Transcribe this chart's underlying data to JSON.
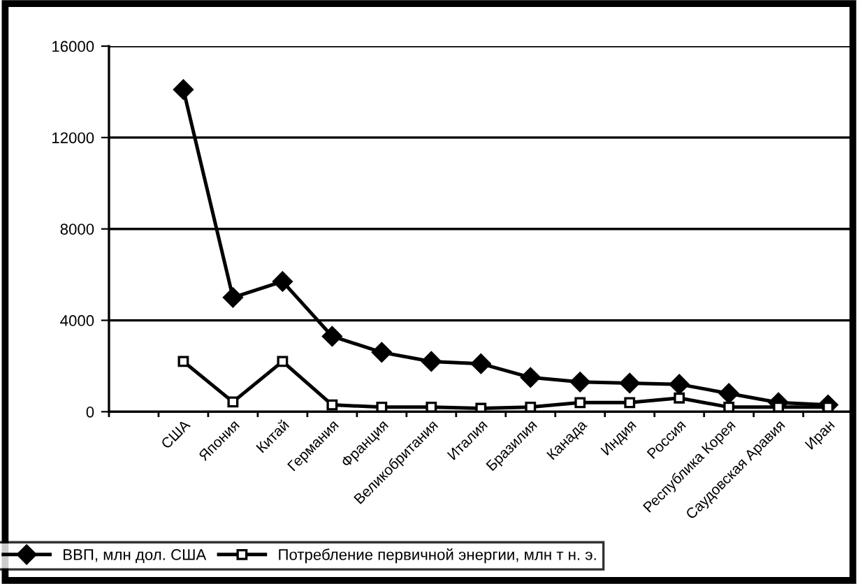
{
  "chart_data": {
    "type": "line",
    "categories": [
      null,
      "США",
      "Япония",
      "Китай",
      "Германия",
      "Франция",
      "Великобритания",
      "Италия",
      "Бразилия",
      "Канада",
      "Индия",
      "Россия",
      "Республика Корея",
      "Саудовская Аравия",
      "Иран"
    ],
    "series": [
      {
        "name": "ВВП, млн дол. США",
        "color": "#000000",
        "marker": "diamond",
        "values": [
          null,
          14100,
          5000,
          5700,
          3300,
          2600,
          2200,
          2100,
          1500,
          1300,
          1250,
          1200,
          800,
          400,
          300
        ]
      },
      {
        "name": "Потребление первичной энергии, млн т н. э.",
        "color": "#000000",
        "marker": "square",
        "values": [
          null,
          2200,
          430,
          2200,
          300,
          200,
          200,
          150,
          200,
          400,
          400,
          600,
          200,
          200,
          200
        ]
      }
    ],
    "ylim": [
      0,
      16000
    ],
    "yticks": [
      0,
      4000,
      8000,
      12000,
      16000
    ],
    "grid": "y",
    "legend": "bottom",
    "line_style": "solid"
  }
}
